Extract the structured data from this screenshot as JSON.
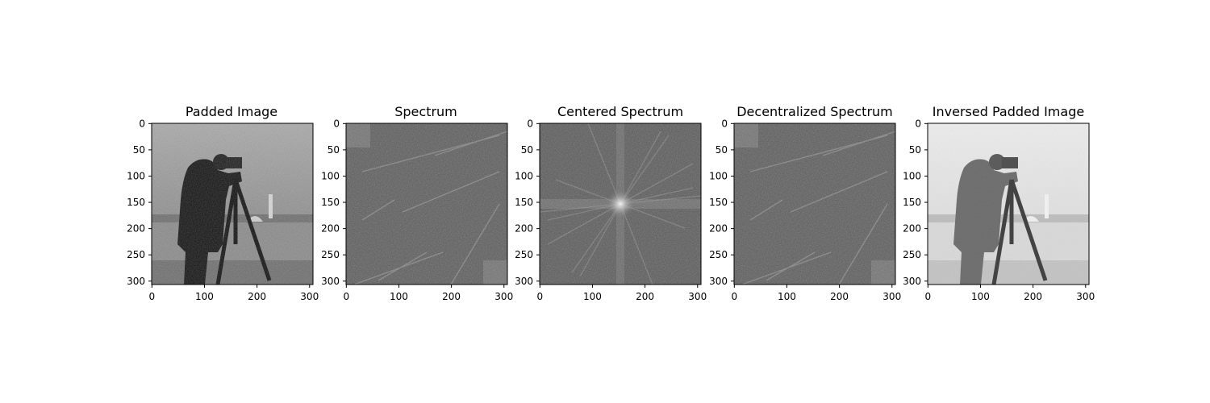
{
  "chart_data": [
    {
      "type": "image",
      "title": "Padded Image",
      "content": "cameraman photograph, zero/reflect padded",
      "tone": "normal",
      "xlim": [
        0,
        307
      ],
      "ylim": [
        0,
        307
      ],
      "x_ticks": [
        "0",
        "100",
        "200",
        "300"
      ],
      "y_ticks": [
        "0",
        "50",
        "100",
        "150",
        "200",
        "250",
        "300"
      ]
    },
    {
      "type": "image",
      "title": "Spectrum",
      "content": "log-magnitude Fourier spectrum, uncentered",
      "tone": "spectrum",
      "xlim": [
        0,
        307
      ],
      "ylim": [
        0,
        307
      ],
      "x_ticks": [
        "0",
        "100",
        "200",
        "300"
      ],
      "y_ticks": [
        "0",
        "50",
        "100",
        "150",
        "200",
        "250",
        "300"
      ]
    },
    {
      "type": "image",
      "title": "Centered Spectrum",
      "content": "log-magnitude Fourier spectrum, shifted to center",
      "tone": "spectrum",
      "xlim": [
        0,
        307
      ],
      "ylim": [
        0,
        307
      ],
      "x_ticks": [
        "0",
        "100",
        "200",
        "300"
      ],
      "y_ticks": [
        "0",
        "50",
        "100",
        "150",
        "200",
        "250",
        "300"
      ]
    },
    {
      "type": "image",
      "title": "Decentralized Spectrum",
      "content": "log-magnitude Fourier spectrum, shifted back",
      "tone": "spectrum",
      "xlim": [
        0,
        307
      ],
      "ylim": [
        0,
        307
      ],
      "x_ticks": [
        "0",
        "100",
        "200",
        "300"
      ],
      "y_ticks": [
        "0",
        "50",
        "100",
        "150",
        "200",
        "250",
        "300"
      ]
    },
    {
      "type": "image",
      "title": "Inversed Padded Image",
      "content": "inverse transform of padded cameraman image (lighter tones)",
      "tone": "light",
      "xlim": [
        0,
        307
      ],
      "ylim": [
        0,
        307
      ],
      "x_ticks": [
        "0",
        "100",
        "200",
        "300"
      ],
      "y_ticks": [
        "0",
        "50",
        "100",
        "150",
        "200",
        "250",
        "300"
      ]
    }
  ]
}
